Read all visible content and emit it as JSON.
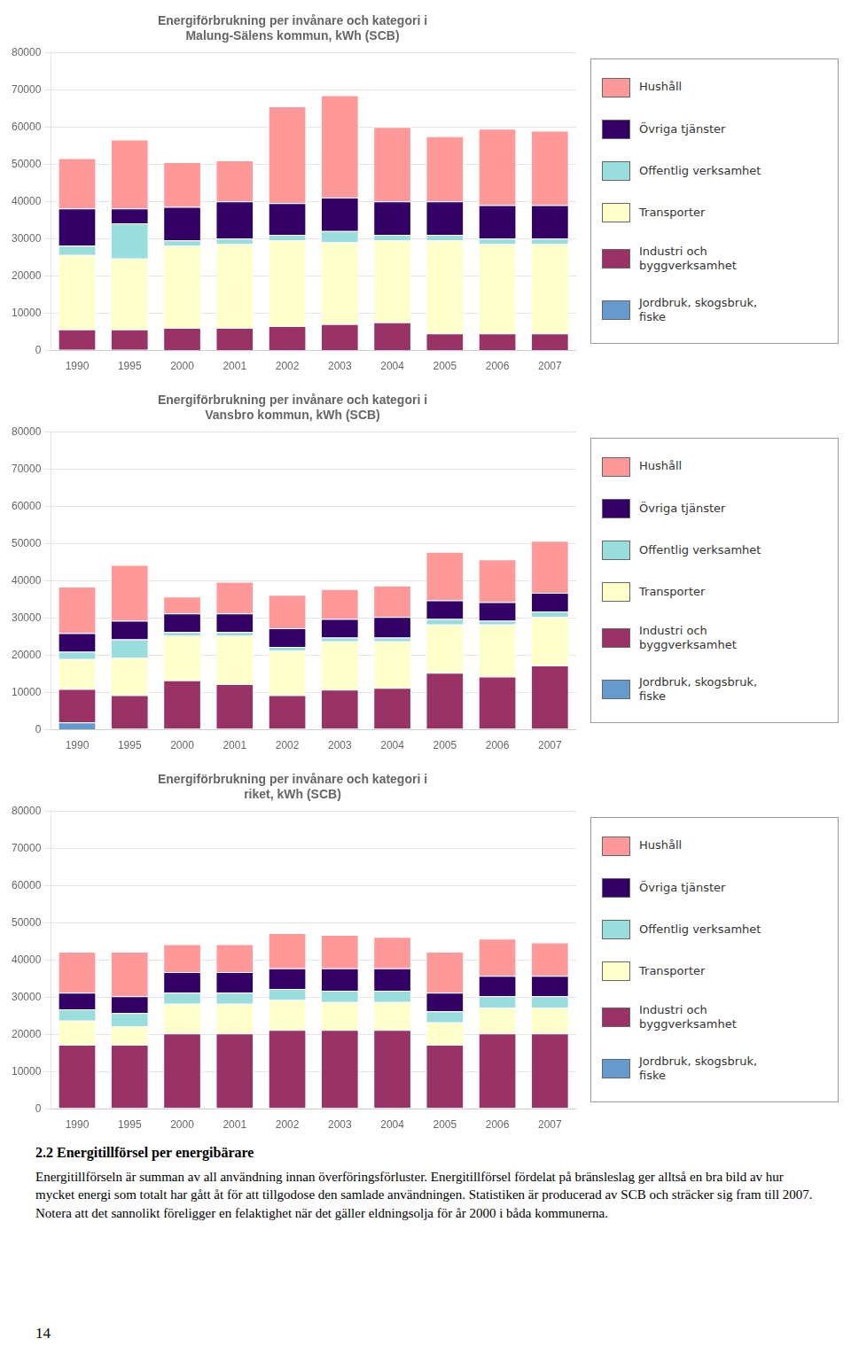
{
  "chart_data": [
    {
      "type": "bar",
      "title": "Energiförbrukning per invånare och kategori i\nMalung-Sälens kommun, kWh (SCB)",
      "categories": [
        "1990",
        "1995",
        "2000",
        "2001",
        "2002",
        "2003",
        "2004",
        "2005",
        "2006",
        "2007"
      ],
      "series": [
        {
          "name": "Jordbruk, skogsbruk,\nfiske",
          "color": "#6699CC",
          "values": [
            200,
            200,
            100,
            100,
            100,
            100,
            100,
            100,
            100,
            100
          ]
        },
        {
          "name": "Industri och\nbyggverksamhet",
          "color": "#993366",
          "values": [
            5500,
            5500,
            6000,
            6000,
            6500,
            7000,
            7500,
            4500,
            4500,
            4500
          ]
        },
        {
          "name": "Transporter",
          "color": "#FFFFCC",
          "values": [
            20000,
            19000,
            22000,
            22500,
            23000,
            22000,
            22000,
            25000,
            24000,
            24000
          ]
        },
        {
          "name": "Offentlig verksamhet",
          "color": "#99DDDD",
          "values": [
            2500,
            9500,
            1500,
            1500,
            1500,
            3000,
            1500,
            1500,
            1500,
            1500
          ]
        },
        {
          "name": "Övriga tjänster",
          "color": "#330066",
          "values": [
            10000,
            4000,
            9000,
            10000,
            8500,
            9000,
            9000,
            9000,
            9000,
            9000
          ]
        },
        {
          "name": "Hushåll",
          "color": "#FF9999",
          "values": [
            13500,
            18500,
            12000,
            11000,
            26000,
            27500,
            20000,
            17500,
            20500,
            20000
          ]
        }
      ],
      "stacked": true,
      "ylim": [
        0,
        80000
      ],
      "yticks": [
        0,
        10000,
        20000,
        30000,
        40000,
        50000,
        60000,
        70000,
        80000
      ],
      "grid": true,
      "legend": "right"
    },
    {
      "type": "bar",
      "title": "Energiförbrukning per invånare och kategori i\nVansbro kommun, kWh (SCB)",
      "categories": [
        "1990",
        "1995",
        "2000",
        "2001",
        "2002",
        "2003",
        "2004",
        "2005",
        "2006",
        "2007"
      ],
      "series": [
        {
          "name": "Jordbruk, skogsbruk,\nfiske",
          "color": "#6699CC",
          "values": [
            2000,
            300,
            300,
            300,
            300,
            300,
            300,
            300,
            300,
            300
          ]
        },
        {
          "name": "Industri och\nbyggverksamhet",
          "color": "#993366",
          "values": [
            9000,
            9000,
            13000,
            12000,
            9000,
            10500,
            11000,
            15000,
            14000,
            17000
          ]
        },
        {
          "name": "Transporter",
          "color": "#FFFFCC",
          "values": [
            8000,
            10000,
            12000,
            13000,
            12000,
            13000,
            12500,
            13000,
            14000,
            13000
          ]
        },
        {
          "name": "Offentlig verksamhet",
          "color": "#99DDDD",
          "values": [
            2000,
            5000,
            1000,
            1000,
            1000,
            1000,
            1000,
            1500,
            1000,
            1500
          ]
        },
        {
          "name": "Övriga tjänster",
          "color": "#330066",
          "values": [
            5000,
            5000,
            5000,
            5000,
            5000,
            5000,
            5500,
            5000,
            5000,
            5000
          ]
        },
        {
          "name": "Hushåll",
          "color": "#FF9999",
          "values": [
            12500,
            15000,
            4500,
            8500,
            9000,
            8000,
            8500,
            13000,
            11500,
            14000
          ]
        }
      ],
      "stacked": true,
      "ylim": [
        0,
        80000
      ],
      "yticks": [
        0,
        10000,
        20000,
        30000,
        40000,
        50000,
        60000,
        70000,
        80000
      ],
      "grid": true,
      "legend": "right"
    },
    {
      "type": "bar",
      "title": "Energiförbrukning per invånare och kategori i\nriket, kWh (SCB)",
      "categories": [
        "1990",
        "1995",
        "2000",
        "2001",
        "2002",
        "2003",
        "2004",
        "2005",
        "2006",
        "2007"
      ],
      "series": [
        {
          "name": "Jordbruk, skogsbruk,\nfiske",
          "color": "#6699CC",
          "values": [
            300,
            300,
            300,
            300,
            300,
            300,
            300,
            300,
            300,
            300
          ]
        },
        {
          "name": "Industri och\nbyggverksamhet",
          "color": "#993366",
          "values": [
            17000,
            17000,
            20000,
            20000,
            21000,
            21000,
            21000,
            17000,
            20000,
            20000
          ]
        },
        {
          "name": "Transporter",
          "color": "#FFFFCC",
          "values": [
            6500,
            5000,
            8000,
            8000,
            8000,
            7500,
            7500,
            6000,
            7000,
            7000
          ]
        },
        {
          "name": "Offentlig verksamhet",
          "color": "#99DDDD",
          "values": [
            3000,
            3500,
            3000,
            3000,
            3000,
            3000,
            3000,
            3000,
            3000,
            3000
          ]
        },
        {
          "name": "Övriga tjänster",
          "color": "#330066",
          "values": [
            4500,
            4500,
            5500,
            5500,
            5500,
            6000,
            6000,
            5000,
            5500,
            5500
          ]
        },
        {
          "name": "Hushåll",
          "color": "#FF9999",
          "values": [
            11000,
            12000,
            7500,
            7500,
            9500,
            9000,
            8500,
            11000,
            10000,
            9000
          ]
        }
      ],
      "stacked": true,
      "ylim": [
        0,
        80000
      ],
      "yticks": [
        0,
        10000,
        20000,
        30000,
        40000,
        50000,
        60000,
        70000,
        80000
      ],
      "grid": true,
      "legend": "right"
    }
  ],
  "section_heading": "2.2 Energitillförsel per energibärare",
  "body_text": "Energitillförseln är summan av all användning innan överföringsförluster. Energitillförsel fördelat på bränsleslag ger alltså en bra bild av hur mycket energi som totalt har gått åt för att tillgodose den samlade användningen. Statistiken är producerad av SCB och sträcker sig fram till 2007. Notera att det sannolikt föreligger en felaktighet när det gäller eldningsolja för år 2000 i båda kommunerna.",
  "page_number": "14"
}
